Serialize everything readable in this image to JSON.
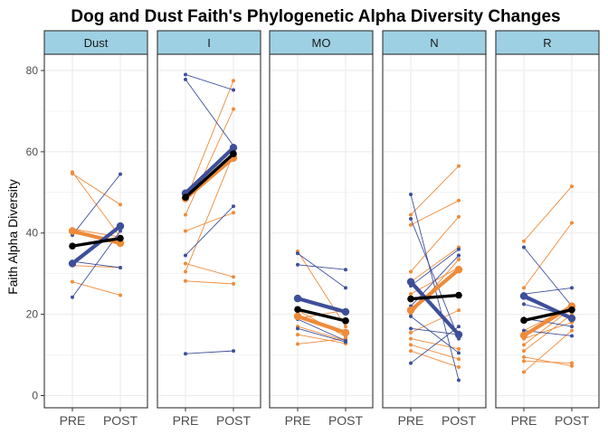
{
  "chart_data": {
    "type": "line",
    "title": "Dog and Dust Faith's Phylogenetic Alpha Diversity Changes",
    "xlabel": "",
    "ylabel": "Faith Alpha Diversity",
    "categories": [
      "PRE",
      "POST"
    ],
    "ylim": [
      -3,
      84
    ],
    "yticks": [
      0,
      20,
      40,
      60,
      80
    ],
    "grid": true,
    "colors": {
      "blue": "#3e4f99",
      "orange": "#ef8b3a",
      "mean": "#000000",
      "strip_fill": "#9ed0e3",
      "panel_border": "#333333",
      "grid": "#ebebeb"
    },
    "panels": [
      {
        "label": "Dust",
        "orange_lines": [
          [
            54.6,
            47.0
          ],
          [
            55.0,
            39.0
          ],
          [
            41.0,
            39.0
          ],
          [
            40.0,
            37.5
          ],
          [
            32.0,
            31.5
          ],
          [
            28.0,
            24.7
          ]
        ],
        "blue_lines": [
          [
            39.5,
            54.5
          ],
          [
            33.0,
            31.5
          ],
          [
            24.2,
            40.5
          ]
        ],
        "orange_mean": [
          40.5,
          37.5
        ],
        "blue_mean": [
          32.5,
          41.7
        ],
        "overall_mean": [
          36.8,
          38.7
        ]
      },
      {
        "label": "I",
        "orange_lines": [
          [
            48.0,
            77.5
          ],
          [
            44.5,
            70.5
          ],
          [
            40.5,
            45.0
          ],
          [
            32.5,
            29.2
          ],
          [
            30.5,
            59.5
          ],
          [
            28.2,
            27.5
          ]
        ],
        "blue_lines": [
          [
            79.0,
            75.2
          ],
          [
            77.8,
            61.5
          ],
          [
            34.5,
            46.6
          ],
          [
            10.3,
            11.0
          ],
          [
            50.0,
            58.0
          ]
        ],
        "orange_mean": [
          48.5,
          58.5
        ],
        "blue_mean": [
          49.8,
          61.0
        ],
        "overall_mean": [
          48.8,
          59.5
        ]
      },
      {
        "label": "MO",
        "orange_lines": [
          [
            35.5,
            17.0
          ],
          [
            21.0,
            14.5
          ],
          [
            19.0,
            21.0
          ],
          [
            17.0,
            13.5
          ],
          [
            15.0,
            12.8
          ],
          [
            12.7,
            14.0
          ]
        ],
        "blue_lines": [
          [
            35.0,
            26.5
          ],
          [
            32.2,
            31.0
          ],
          [
            23.8,
            20.5
          ],
          [
            18.8,
            13.5
          ],
          [
            16.5,
            13.2
          ]
        ],
        "orange_mean": [
          19.5,
          15.5
        ],
        "blue_mean": [
          23.9,
          20.6
        ],
        "overall_mean": [
          21.2,
          18.4
        ]
      },
      {
        "label": "N",
        "orange_lines": [
          [
            44.5,
            56.5
          ],
          [
            42.0,
            48.0
          ],
          [
            30.5,
            44.0
          ],
          [
            28.0,
            36.5
          ],
          [
            25.0,
            31.5
          ],
          [
            20.0,
            33.5
          ],
          [
            15.5,
            21.0
          ],
          [
            14.0,
            11.5
          ],
          [
            12.5,
            9.0
          ],
          [
            11.0,
            7.0
          ]
        ],
        "blue_lines": [
          [
            49.5,
            3.8
          ],
          [
            43.5,
            14.0
          ],
          [
            27.0,
            36.0
          ],
          [
            22.0,
            34.5
          ],
          [
            19.5,
            10.5
          ],
          [
            16.5,
            15.0
          ],
          [
            8.0,
            17.0
          ]
        ],
        "orange_mean": [
          21.0,
          31.0
        ],
        "blue_mean": [
          28.0,
          15.0
        ],
        "overall_mean": [
          23.8,
          24.7
        ]
      },
      {
        "label": "R",
        "orange_lines": [
          [
            38.0,
            51.5
          ],
          [
            26.5,
            42.5
          ],
          [
            16.0,
            22.0
          ],
          [
            14.0,
            18.0
          ],
          [
            12.5,
            21.5
          ],
          [
            11.0,
            20.0
          ],
          [
            9.5,
            7.3
          ],
          [
            8.5,
            8.0
          ],
          [
            5.8,
            16.0
          ]
        ],
        "blue_lines": [
          [
            36.5,
            22.0
          ],
          [
            25.0,
            26.5
          ],
          [
            24.0,
            19.0
          ],
          [
            22.5,
            19.5
          ],
          [
            19.0,
            17.0
          ],
          [
            16.0,
            14.7
          ]
        ],
        "orange_mean": [
          14.8,
          22.0
        ],
        "blue_mean": [
          24.5,
          19.0
        ],
        "overall_mean": [
          18.5,
          21.1
        ]
      }
    ]
  }
}
